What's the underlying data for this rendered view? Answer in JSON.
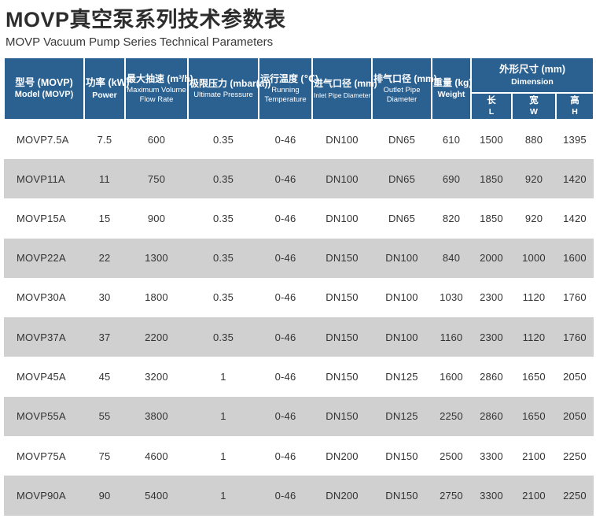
{
  "page": {
    "title": "MOVP真空泵系列技术参数表",
    "subtitle": "MOVP Vacuum Pump Series Technical Parameters"
  },
  "colors": {
    "header_blue": "#2b6191",
    "alt_row_gray": "#d0d0d0",
    "text_dark": "#333333"
  },
  "table": {
    "columns": [
      {
        "zh": "型号 (MOVP)",
        "en": "Model (MOVP)"
      },
      {
        "zh": "功率 (kW)",
        "en": "Power"
      },
      {
        "zh": "最大抽速 (m³/h)",
        "en": "Maximum Volume Flow Rate"
      },
      {
        "zh": "极限压力 (mbar(a))",
        "en": "Ultimate Pressure"
      },
      {
        "zh": "运行温度 (℃)",
        "en": "Running Temperature"
      },
      {
        "zh": "进气口径 (mm)",
        "en": "Inlet Pipe Diameter"
      },
      {
        "zh": "排气口径 (mm)",
        "en": "Outlet Pipe Diameter"
      },
      {
        "zh": "重量 (kg)",
        "en": "Weight"
      }
    ],
    "dimension_group": {
      "zh": "外形尺寸 (mm)",
      "en": "Dimension",
      "sub": [
        {
          "zh": "长",
          "en": "L"
        },
        {
          "zh": "宽",
          "en": "W"
        },
        {
          "zh": "高",
          "en": "H"
        }
      ]
    },
    "rows": [
      [
        "MOVP7.5A",
        "7.5",
        "600",
        "0.35",
        "0-46",
        "DN100",
        "DN65",
        "610",
        "1500",
        "880",
        "1395"
      ],
      [
        "MOVP11A",
        "11",
        "750",
        "0.35",
        "0-46",
        "DN100",
        "DN65",
        "690",
        "1850",
        "920",
        "1420"
      ],
      [
        "MOVP15A",
        "15",
        "900",
        "0.35",
        "0-46",
        "DN100",
        "DN65",
        "820",
        "1850",
        "920",
        "1420"
      ],
      [
        "MOVP22A",
        "22",
        "1300",
        "0.35",
        "0-46",
        "DN150",
        "DN100",
        "840",
        "2000",
        "1000",
        "1600"
      ],
      [
        "MOVP30A",
        "30",
        "1800",
        "0.35",
        "0-46",
        "DN150",
        "DN100",
        "1030",
        "2300",
        "1120",
        "1760"
      ],
      [
        "MOVP37A",
        "37",
        "2200",
        "0.35",
        "0-46",
        "DN150",
        "DN100",
        "1160",
        "2300",
        "1120",
        "1760"
      ],
      [
        "MOVP45A",
        "45",
        "3200",
        "1",
        "0-46",
        "DN150",
        "DN125",
        "1600",
        "2860",
        "1650",
        "2050"
      ],
      [
        "MOVP55A",
        "55",
        "3800",
        "1",
        "0-46",
        "DN150",
        "DN125",
        "2250",
        "2860",
        "1650",
        "2050"
      ],
      [
        "MOVP75A",
        "75",
        "4600",
        "1",
        "0-46",
        "DN200",
        "DN150",
        "2500",
        "3300",
        "2100",
        "2250"
      ],
      [
        "MOVP90A",
        "90",
        "5400",
        "1",
        "0-46",
        "DN200",
        "DN150",
        "2750",
        "3300",
        "2100",
        "2250"
      ]
    ]
  }
}
